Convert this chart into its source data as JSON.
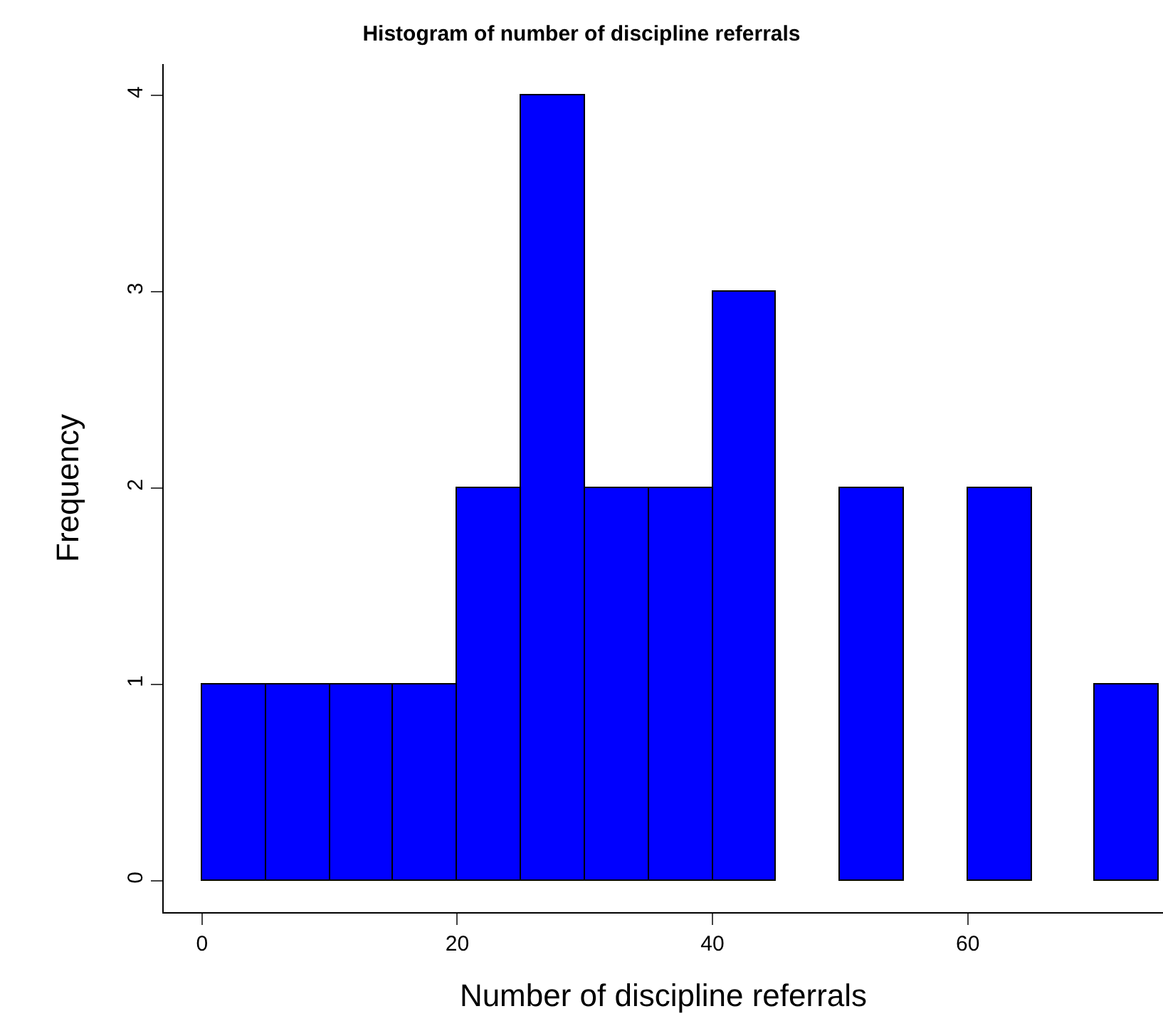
{
  "chart_data": {
    "type": "histogram",
    "title": "Histogram of number of discipline referrals",
    "xlabel": "Number of discipline referrals",
    "ylabel": "Frequency",
    "bins": [
      0,
      5,
      10,
      15,
      20,
      25,
      30,
      35,
      40,
      45,
      50,
      55,
      60,
      65,
      70,
      75
    ],
    "values": [
      1,
      1,
      1,
      1,
      2,
      4,
      2,
      2,
      3,
      0,
      2,
      0,
      2,
      0,
      1
    ],
    "color": "#0000ff",
    "xlim": [
      -3,
      75.3
    ],
    "ylim": [
      -0.16,
      4.16
    ],
    "xticks": [
      0,
      20,
      40,
      60
    ],
    "yticks": [
      0,
      1,
      2,
      3,
      4
    ]
  }
}
